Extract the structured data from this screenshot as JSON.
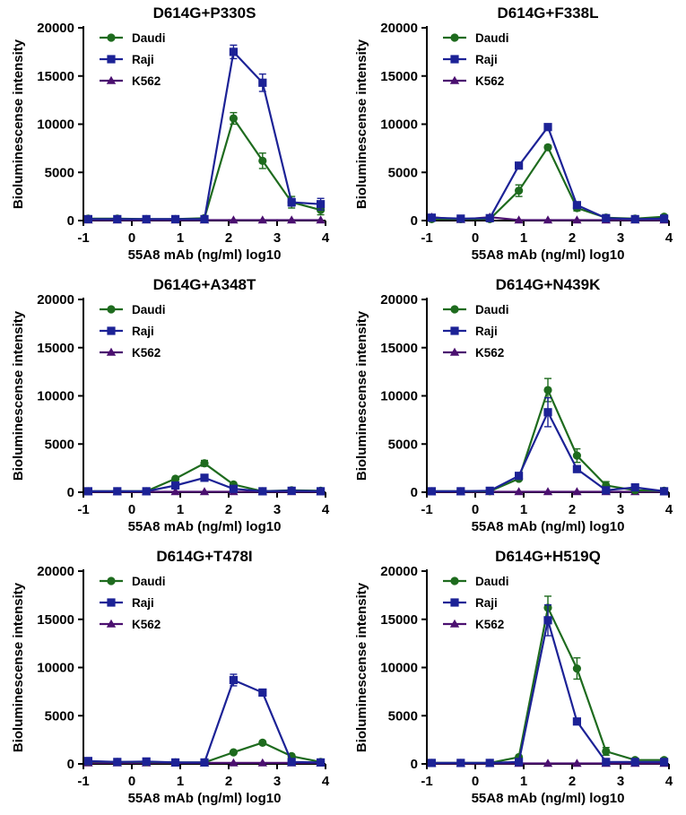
{
  "chart_data": [
    {
      "type": "line",
      "title": "D614G+P330S",
      "xlabel": "55A8 mAb (ng/ml) log10",
      "ylabel": "Bioluminescense intensity",
      "xlim": [
        -1,
        4
      ],
      "ylim": [
        0,
        20000
      ],
      "xticks": [
        "-1",
        "0",
        "1",
        "2",
        "3",
        "4"
      ],
      "yticks": [
        "0",
        "5000",
        "10000",
        "15000",
        "20000"
      ],
      "x": [
        -0.9,
        -0.3,
        0.3,
        0.9,
        1.5,
        2.1,
        2.7,
        3.3,
        3.9
      ],
      "series": [
        {
          "name": "Daudi",
          "marker": "circle",
          "color": "#1e6b1e",
          "values": [
            200,
            200,
            150,
            150,
            250,
            10600,
            6200,
            1900,
            1100
          ],
          "errors": [
            0,
            0,
            0,
            0,
            0,
            600,
            800,
            600,
            500
          ]
        },
        {
          "name": "Raji",
          "marker": "square",
          "color": "#1c2296",
          "values": [
            150,
            150,
            150,
            150,
            150,
            17500,
            14300,
            1900,
            1700
          ],
          "errors": [
            0,
            0,
            0,
            0,
            0,
            700,
            900,
            400,
            600
          ]
        },
        {
          "name": "K562",
          "marker": "triangle",
          "color": "#4b1070",
          "values": [
            50,
            50,
            50,
            50,
            50,
            50,
            50,
            50,
            50
          ],
          "errors": [
            0,
            0,
            0,
            0,
            0,
            0,
            0,
            0,
            0
          ]
        }
      ]
    },
    {
      "type": "line",
      "title": "D614G+F338L",
      "xlabel": "55A8 mAb (ng/ml) log10",
      "ylabel": "Bioluminescense intensity",
      "xlim": [
        -1,
        4
      ],
      "ylim": [
        0,
        20000
      ],
      "xticks": [
        "-1",
        "0",
        "1",
        "2",
        "3",
        "4"
      ],
      "yticks": [
        "0",
        "5000",
        "10000",
        "15000",
        "20000"
      ],
      "x": [
        -0.9,
        -0.3,
        0.3,
        0.9,
        1.5,
        2.1,
        2.7,
        3.3,
        3.9
      ],
      "series": [
        {
          "name": "Daudi",
          "marker": "circle",
          "color": "#1e6b1e",
          "values": [
            150,
            150,
            150,
            3100,
            7600,
            1300,
            300,
            200,
            400
          ],
          "errors": [
            0,
            0,
            0,
            600,
            200,
            300,
            0,
            0,
            0
          ]
        },
        {
          "name": "Raji",
          "marker": "square",
          "color": "#1c2296",
          "values": [
            300,
            200,
            250,
            5700,
            9700,
            1600,
            250,
            150,
            200
          ],
          "errors": [
            0,
            0,
            0,
            200,
            200,
            300,
            0,
            0,
            0
          ]
        },
        {
          "name": "K562",
          "marker": "triangle",
          "color": "#4b1070",
          "values": [
            350,
            100,
            350,
            50,
            50,
            50,
            50,
            50,
            50
          ],
          "errors": [
            0,
            0,
            0,
            0,
            0,
            0,
            0,
            0,
            0
          ]
        }
      ]
    },
    {
      "type": "line",
      "title": "D614G+A348T",
      "xlabel": "55A8 mAb (ng/ml) log10",
      "ylabel": "Bioluminescense intensity",
      "xlim": [
        -1,
        4
      ],
      "ylim": [
        0,
        20000
      ],
      "xticks": [
        "-1",
        "0",
        "1",
        "2",
        "3",
        "4"
      ],
      "yticks": [
        "0",
        "5000",
        "10000",
        "15000",
        "20000"
      ],
      "x": [
        -0.9,
        -0.3,
        0.3,
        0.9,
        1.5,
        2.1,
        2.7,
        3.3,
        3.9
      ],
      "series": [
        {
          "name": "Daudi",
          "marker": "circle",
          "color": "#1e6b1e",
          "values": [
            100,
            100,
            100,
            1400,
            3000,
            800,
            100,
            200,
            150
          ],
          "errors": [
            0,
            0,
            0,
            0,
            300,
            0,
            0,
            0,
            0
          ]
        },
        {
          "name": "Raji",
          "marker": "square",
          "color": "#1c2296",
          "values": [
            100,
            100,
            100,
            700,
            1500,
            350,
            100,
            150,
            100
          ],
          "errors": [
            0,
            0,
            0,
            0,
            0,
            0,
            0,
            0,
            0
          ]
        },
        {
          "name": "K562",
          "marker": "triangle",
          "color": "#4b1070",
          "values": [
            50,
            50,
            50,
            50,
            50,
            50,
            50,
            50,
            50
          ],
          "errors": [
            0,
            0,
            0,
            0,
            0,
            0,
            0,
            0,
            0
          ]
        }
      ]
    },
    {
      "type": "line",
      "title": "D614G+N439K",
      "xlabel": "55A8 mAb (ng/ml) log10",
      "ylabel": "Bioluminescense intensity",
      "xlim": [
        -1,
        4
      ],
      "ylim": [
        0,
        20000
      ],
      "xticks": [
        "-1",
        "0",
        "1",
        "2",
        "3",
        "4"
      ],
      "yticks": [
        "0",
        "5000",
        "10000",
        "15000",
        "20000"
      ],
      "x": [
        -0.9,
        -0.3,
        0.3,
        0.9,
        1.5,
        2.1,
        2.7,
        3.3,
        3.9
      ],
      "series": [
        {
          "name": "Daudi",
          "marker": "circle",
          "color": "#1e6b1e",
          "values": [
            100,
            100,
            100,
            1400,
            10600,
            3800,
            700,
            200,
            150
          ],
          "errors": [
            0,
            0,
            0,
            0,
            1200,
            700,
            400,
            0,
            0
          ]
        },
        {
          "name": "Raji",
          "marker": "square",
          "color": "#1c2296",
          "values": [
            100,
            100,
            150,
            1700,
            8300,
            2400,
            200,
            500,
            100
          ],
          "errors": [
            0,
            0,
            0,
            0,
            1500,
            0,
            0,
            0,
            0
          ]
        },
        {
          "name": "K562",
          "marker": "triangle",
          "color": "#4b1070",
          "values": [
            50,
            50,
            50,
            50,
            50,
            50,
            50,
            50,
            50
          ],
          "errors": [
            0,
            0,
            0,
            0,
            0,
            0,
            0,
            0,
            0
          ]
        }
      ]
    },
    {
      "type": "line",
      "title": "D614G+T478I",
      "xlabel": "55A8 mAb (ng/ml) log10",
      "ylabel": "Bioluminescense intensity",
      "xlim": [
        -1,
        4
      ],
      "ylim": [
        0,
        20000
      ],
      "xticks": [
        "-1",
        "0",
        "1",
        "2",
        "3",
        "4"
      ],
      "yticks": [
        "0",
        "5000",
        "10000",
        "15000",
        "20000"
      ],
      "x": [
        -0.9,
        -0.3,
        0.3,
        0.9,
        1.5,
        2.1,
        2.7,
        3.3,
        3.9
      ],
      "series": [
        {
          "name": "Daudi",
          "marker": "circle",
          "color": "#1e6b1e",
          "values": [
            250,
            200,
            200,
            150,
            150,
            1200,
            2200,
            800,
            200
          ],
          "errors": [
            0,
            0,
            0,
            0,
            0,
            0,
            0,
            0,
            0
          ]
        },
        {
          "name": "Raji",
          "marker": "square",
          "color": "#1c2296",
          "values": [
            300,
            200,
            250,
            150,
            150,
            8700,
            7400,
            200,
            150
          ],
          "errors": [
            0,
            0,
            0,
            0,
            0,
            600,
            0,
            0,
            0
          ]
        },
        {
          "name": "K562",
          "marker": "triangle",
          "color": "#4b1070",
          "values": [
            100,
            100,
            100,
            100,
            100,
            100,
            100,
            100,
            100
          ],
          "errors": [
            0,
            0,
            0,
            0,
            0,
            0,
            0,
            0,
            0
          ]
        }
      ]
    },
    {
      "type": "line",
      "title": "D614G+H519Q",
      "xlabel": "55A8 mAb (ng/ml) log10",
      "ylabel": "Bioluminescense intensity",
      "xlim": [
        -1,
        4
      ],
      "ylim": [
        0,
        20000
      ],
      "xticks": [
        "-1",
        "0",
        "1",
        "2",
        "3",
        "4"
      ],
      "yticks": [
        "0",
        "5000",
        "10000",
        "15000",
        "20000"
      ],
      "x": [
        -0.9,
        -0.3,
        0.3,
        0.9,
        1.5,
        2.1,
        2.7,
        3.3,
        3.9
      ],
      "series": [
        {
          "name": "Daudi",
          "marker": "circle",
          "color": "#1e6b1e",
          "values": [
            100,
            100,
            100,
            700,
            16200,
            9900,
            1300,
            400,
            400
          ],
          "errors": [
            0,
            0,
            0,
            0,
            1200,
            1100,
            400,
            0,
            0
          ]
        },
        {
          "name": "Raji",
          "marker": "square",
          "color": "#1c2296",
          "values": [
            100,
            100,
            100,
            200,
            14900,
            4400,
            200,
            200,
            200
          ],
          "errors": [
            0,
            0,
            0,
            0,
            1600,
            0,
            0,
            0,
            0
          ]
        },
        {
          "name": "K562",
          "marker": "triangle",
          "color": "#4b1070",
          "values": [
            50,
            50,
            50,
            50,
            50,
            50,
            50,
            50,
            50
          ],
          "errors": [
            0,
            0,
            0,
            0,
            0,
            0,
            0,
            0,
            0
          ]
        }
      ]
    }
  ]
}
